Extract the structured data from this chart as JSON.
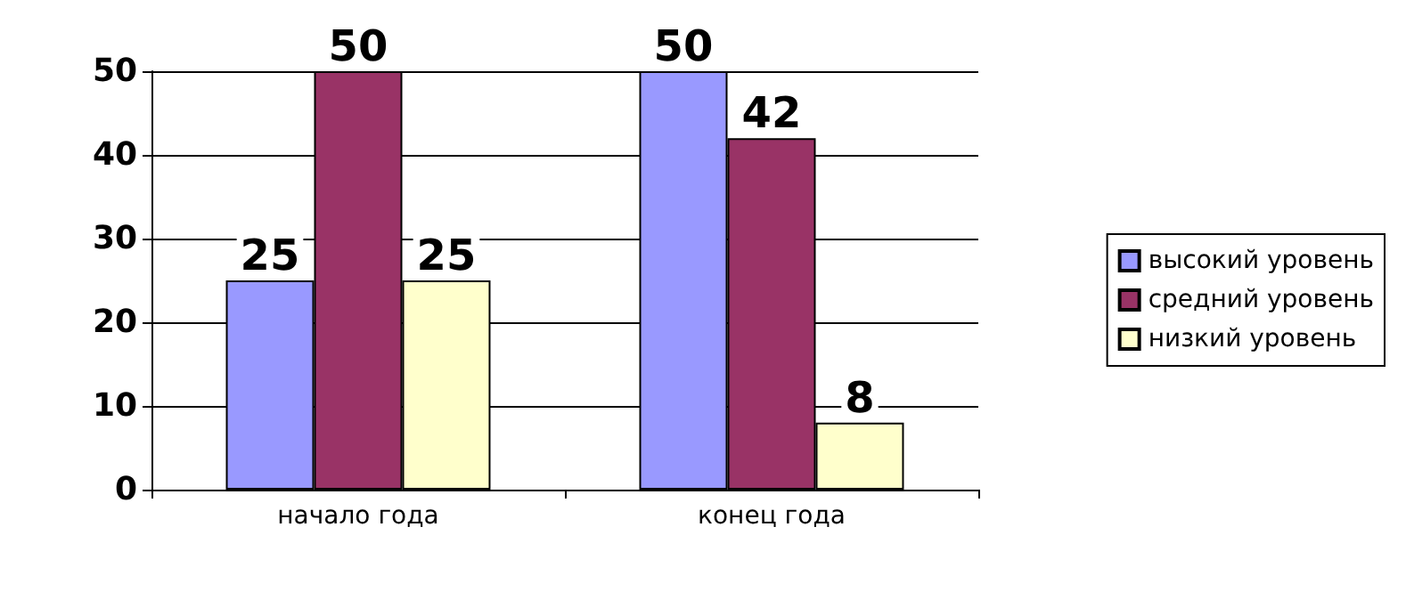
{
  "chart_data": {
    "type": "bar",
    "categories": [
      "начало года",
      "конец года"
    ],
    "series": [
      {
        "name": "высокий уровень",
        "color": "#9999ff",
        "values": [
          25,
          50
        ]
      },
      {
        "name": "средний уровень",
        "color": "#993366",
        "values": [
          50,
          42
        ]
      },
      {
        "name": "низкий уровень",
        "color": "#ffffcc",
        "values": [
          25,
          8
        ]
      }
    ],
    "ylim": [
      0,
      50
    ],
    "yticks": [
      0,
      10,
      20,
      30,
      40,
      50
    ],
    "grid": "y",
    "legend": "right",
    "data_labels": true
  }
}
